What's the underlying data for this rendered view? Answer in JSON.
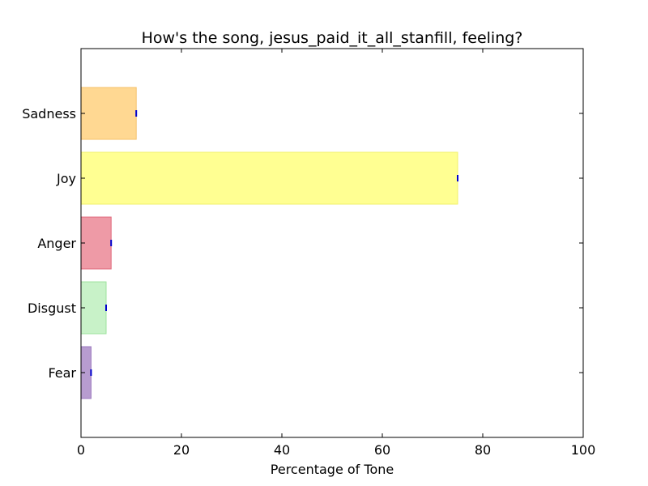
{
  "chart_data": {
    "type": "bar",
    "orientation": "horizontal",
    "title": "How's the song, jesus_paid_it_all_stanfill, feeling?",
    "xlabel": "Percentage of Tone",
    "ylabel": "",
    "xlim": [
      0,
      100
    ],
    "xticks": [
      0,
      20,
      40,
      60,
      80,
      100
    ],
    "grid": false,
    "categories": [
      "Sadness",
      "Joy",
      "Anger",
      "Disgust",
      "Fear"
    ],
    "values": [
      11,
      75,
      6,
      5,
      2
    ],
    "colors": {
      "Sadness": {
        "fill": "#ffd892",
        "edge": "#f5c26b"
      },
      "Joy": {
        "fill": "#ffff92",
        "edge": "#f2f26a"
      },
      "Anger": {
        "fill": "#ee9aa6",
        "edge": "#e06a7c"
      },
      "Disgust": {
        "fill": "#c8f2c8",
        "edge": "#9ee39e"
      },
      "Fear": {
        "fill": "#b79cd0",
        "edge": "#9b78bf"
      }
    },
    "errorbar_color": "#0000cc"
  }
}
